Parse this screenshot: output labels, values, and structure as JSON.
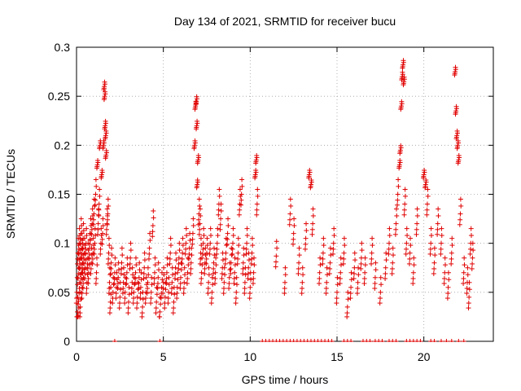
{
  "chart_data": {
    "type": "scatter",
    "title": "Day 134 of 2021, SRMTID for receiver bucu",
    "xlabel": "GPS time / hours",
    "ylabel": "SRMTID / TECUs",
    "xlim": [
      0,
      24
    ],
    "ylim": [
      0,
      0.3
    ],
    "xticks": [
      0,
      5,
      10,
      15,
      20
    ],
    "xtick_labels": [
      "0",
      "5",
      "10",
      "15",
      "20"
    ],
    "yticks": [
      0,
      0.05,
      0.1,
      0.15,
      0.2,
      0.25,
      0.3
    ],
    "ytick_labels": [
      "0",
      "0.05",
      "0.1",
      "0.15",
      "0.2",
      "0.25",
      "0.3"
    ],
    "grid": true,
    "marker": "+",
    "color": "#e00000",
    "series": [
      {
        "name": "SRMTID",
        "points": [
          [
            0.02,
            0.05
          ],
          [
            0.05,
            0.03
          ],
          [
            0.08,
            0.09
          ],
          [
            0.1,
            0.026
          ],
          [
            0.12,
            0.075
          ],
          [
            0.15,
            0.1
          ],
          [
            0.18,
            0.06
          ],
          [
            0.2,
            0.085
          ],
          [
            0.22,
            0.035
          ],
          [
            0.25,
            0.11
          ],
          [
            0.28,
            0.07
          ],
          [
            0.3,
            0.095
          ],
          [
            0.33,
            0.055
          ],
          [
            0.35,
            0.08
          ],
          [
            0.38,
            0.105
          ],
          [
            0.4,
            0.065
          ],
          [
            0.45,
            0.09
          ],
          [
            0.5,
            0.075
          ],
          [
            0.55,
            0.1
          ],
          [
            0.6,
            0.06
          ],
          [
            0.65,
            0.085
          ],
          [
            0.7,
            0.07
          ],
          [
            0.75,
            0.095
          ],
          [
            0.8,
            0.11
          ],
          [
            0.85,
            0.08
          ],
          [
            0.9,
            0.12
          ],
          [
            0.95,
            0.09
          ],
          [
            1.0,
            0.13
          ],
          [
            1.05,
            0.1
          ],
          [
            1.1,
            0.15
          ],
          [
            1.15,
            0.07
          ],
          [
            1.2,
            0.18
          ],
          [
            1.25,
            0.12
          ],
          [
            1.3,
            0.14
          ],
          [
            1.35,
            0.2
          ],
          [
            1.4,
            0.1
          ],
          [
            1.45,
            0.17
          ],
          [
            1.5,
            0.11
          ],
          [
            1.55,
            0.2
          ],
          [
            1.6,
            0.26
          ],
          [
            1.62,
            0.25
          ],
          [
            1.65,
            0.22
          ],
          [
            1.68,
            0.21
          ],
          [
            1.7,
            0.19
          ],
          [
            1.75,
            0.12
          ],
          [
            1.8,
            0.13
          ],
          [
            1.85,
            0.09
          ],
          [
            1.9,
            0.06
          ],
          [
            1.95,
            0.04
          ],
          [
            2.0,
            0.08
          ],
          [
            2.1,
            0.05
          ],
          [
            2.2,
            0.07
          ],
          [
            2.3,
            0.055
          ],
          [
            2.4,
            0.065
          ],
          [
            2.5,
            0.045
          ],
          [
            2.6,
            0.08
          ],
          [
            2.7,
            0.06
          ],
          [
            2.8,
            0.05
          ],
          [
            2.9,
            0.07
          ],
          [
            3.0,
            0.04
          ],
          [
            3.1,
            0.085
          ],
          [
            3.2,
            0.06
          ],
          [
            3.3,
            0.05
          ],
          [
            3.4,
            0.07
          ],
          [
            3.5,
            0.045
          ],
          [
            3.6,
            0.065
          ],
          [
            3.7,
            0.055
          ],
          [
            3.8,
            0.035
          ],
          [
            3.9,
            0.075
          ],
          [
            4.0,
            0.05
          ],
          [
            4.1,
            0.06
          ],
          [
            4.2,
            0.095
          ],
          [
            4.3,
            0.05
          ],
          [
            4.4,
            0.118
          ],
          [
            4.5,
            0.07
          ],
          [
            4.6,
            0.04
          ],
          [
            4.7,
            0.065
          ],
          [
            4.8,
            0.03
          ],
          [
            4.9,
            0.055
          ],
          [
            5.0,
            0.06
          ],
          [
            5.1,
            0.045
          ],
          [
            5.2,
            0.07
          ],
          [
            5.3,
            0.05
          ],
          [
            5.4,
            0.09
          ],
          [
            5.5,
            0.06
          ],
          [
            5.6,
            0.04
          ],
          [
            5.7,
            0.075
          ],
          [
            5.8,
            0.055
          ],
          [
            5.9,
            0.085
          ],
          [
            6.0,
            0.065
          ],
          [
            6.1,
            0.09
          ],
          [
            6.2,
            0.06
          ],
          [
            6.3,
            0.1
          ],
          [
            6.4,
            0.07
          ],
          [
            6.5,
            0.095
          ],
          [
            6.6,
            0.08
          ],
          [
            6.7,
            0.11
          ],
          [
            6.8,
            0.2
          ],
          [
            6.85,
            0.24
          ],
          [
            6.9,
            0.245
          ],
          [
            6.92,
            0.22
          ],
          [
            6.95,
            0.16
          ],
          [
            7.0,
            0.185
          ],
          [
            7.05,
            0.13
          ],
          [
            7.1,
            0.12
          ],
          [
            7.15,
            0.09
          ],
          [
            7.2,
            0.07
          ],
          [
            7.3,
            0.1
          ],
          [
            7.4,
            0.08
          ],
          [
            7.5,
            0.09
          ],
          [
            7.6,
            0.06
          ],
          [
            7.7,
            0.1
          ],
          [
            7.8,
            0.05
          ],
          [
            7.9,
            0.08
          ],
          [
            8.0,
            0.07
          ],
          [
            8.1,
            0.1
          ],
          [
            8.2,
            0.14
          ],
          [
            8.3,
            0.125
          ],
          [
            8.4,
            0.075
          ],
          [
            8.5,
            0.06
          ],
          [
            8.6,
            0.09
          ],
          [
            8.7,
            0.11
          ],
          [
            8.8,
            0.065
          ],
          [
            8.9,
            0.08
          ],
          [
            9.0,
            0.1
          ],
          [
            9.1,
            0.07
          ],
          [
            9.2,
            0.05
          ],
          [
            9.3,
            0.09
          ],
          [
            9.4,
            0.14
          ],
          [
            9.5,
            0.15
          ],
          [
            9.6,
            0.08
          ],
          [
            9.7,
            0.06
          ],
          [
            9.8,
            0.1
          ],
          [
            9.9,
            0.075
          ],
          [
            10.0,
            0.055
          ],
          [
            10.1,
            0.09
          ],
          [
            10.2,
            0.07
          ],
          [
            10.3,
            0.17
          ],
          [
            10.35,
            0.185
          ],
          [
            10.4,
            0.14
          ],
          [
            11.5,
            0.087
          ],
          [
            12.0,
            0.06
          ],
          [
            12.3,
            0.13
          ],
          [
            12.5,
            0.11
          ],
          [
            12.8,
            0.08
          ],
          [
            13.0,
            0.06
          ],
          [
            13.2,
            0.105
          ],
          [
            13.4,
            0.17
          ],
          [
            13.5,
            0.16
          ],
          [
            13.6,
            0.12
          ],
          [
            14.0,
            0.07
          ],
          [
            14.2,
            0.09
          ],
          [
            14.4,
            0.06
          ],
          [
            14.6,
            0.08
          ],
          [
            14.8,
            0.1
          ],
          [
            15.0,
            0.05
          ],
          [
            15.2,
            0.07
          ],
          [
            15.4,
            0.09
          ],
          [
            15.6,
            0.035
          ],
          [
            15.8,
            0.055
          ],
          [
            16.0,
            0.075
          ],
          [
            16.2,
            0.06
          ],
          [
            16.4,
            0.085
          ],
          [
            16.6,
            0.07
          ],
          [
            17.0,
            0.09
          ],
          [
            17.2,
            0.065
          ],
          [
            17.5,
            0.05
          ],
          [
            17.8,
            0.075
          ],
          [
            18.0,
            0.1
          ],
          [
            18.2,
            0.08
          ],
          [
            18.4,
            0.12
          ],
          [
            18.5,
            0.15
          ],
          [
            18.6,
            0.18
          ],
          [
            18.65,
            0.195
          ],
          [
            18.7,
            0.24
          ],
          [
            18.75,
            0.27
          ],
          [
            18.8,
            0.282
          ],
          [
            18.85,
            0.265
          ],
          [
            18.9,
            0.14
          ],
          [
            19.0,
            0.1
          ],
          [
            19.2,
            0.09
          ],
          [
            19.4,
            0.07
          ],
          [
            19.6,
            0.12
          ],
          [
            20.0,
            0.17
          ],
          [
            20.1,
            0.16
          ],
          [
            20.2,
            0.14
          ],
          [
            20.4,
            0.1
          ],
          [
            20.6,
            0.08
          ],
          [
            20.8,
            0.12
          ],
          [
            21.0,
            0.1
          ],
          [
            21.2,
            0.07
          ],
          [
            21.4,
            0.055
          ],
          [
            21.6,
            0.09
          ],
          [
            21.8,
            0.275
          ],
          [
            21.85,
            0.235
          ],
          [
            21.9,
            0.21
          ],
          [
            21.95,
            0.2
          ],
          [
            22.0,
            0.185
          ],
          [
            22.1,
            0.13
          ],
          [
            22.3,
            0.07
          ],
          [
            22.5,
            0.06
          ],
          [
            22.6,
            0.045
          ],
          [
            22.7,
            0.1
          ],
          [
            22.8,
            0.085
          ]
        ]
      }
    ],
    "zero_markers_x": [
      2.2,
      4.8,
      10.7,
      10.9,
      11.1,
      11.3,
      11.5,
      11.7,
      11.9,
      12.1,
      12.3,
      12.5,
      12.7,
      12.9,
      13.1,
      13.3,
      13.5,
      13.7,
      13.9,
      14.1,
      14.3,
      14.5,
      14.7,
      15.4,
      15.6,
      15.8,
      16.5,
      16.7,
      16.9,
      17.2,
      17.4,
      17.6,
      18.0,
      18.2,
      18.4,
      19.0,
      19.2,
      19.4,
      19.6,
      19.8,
      20.4,
      20.6,
      21.0,
      21.3,
      21.6,
      22.0,
      22.3
    ]
  }
}
